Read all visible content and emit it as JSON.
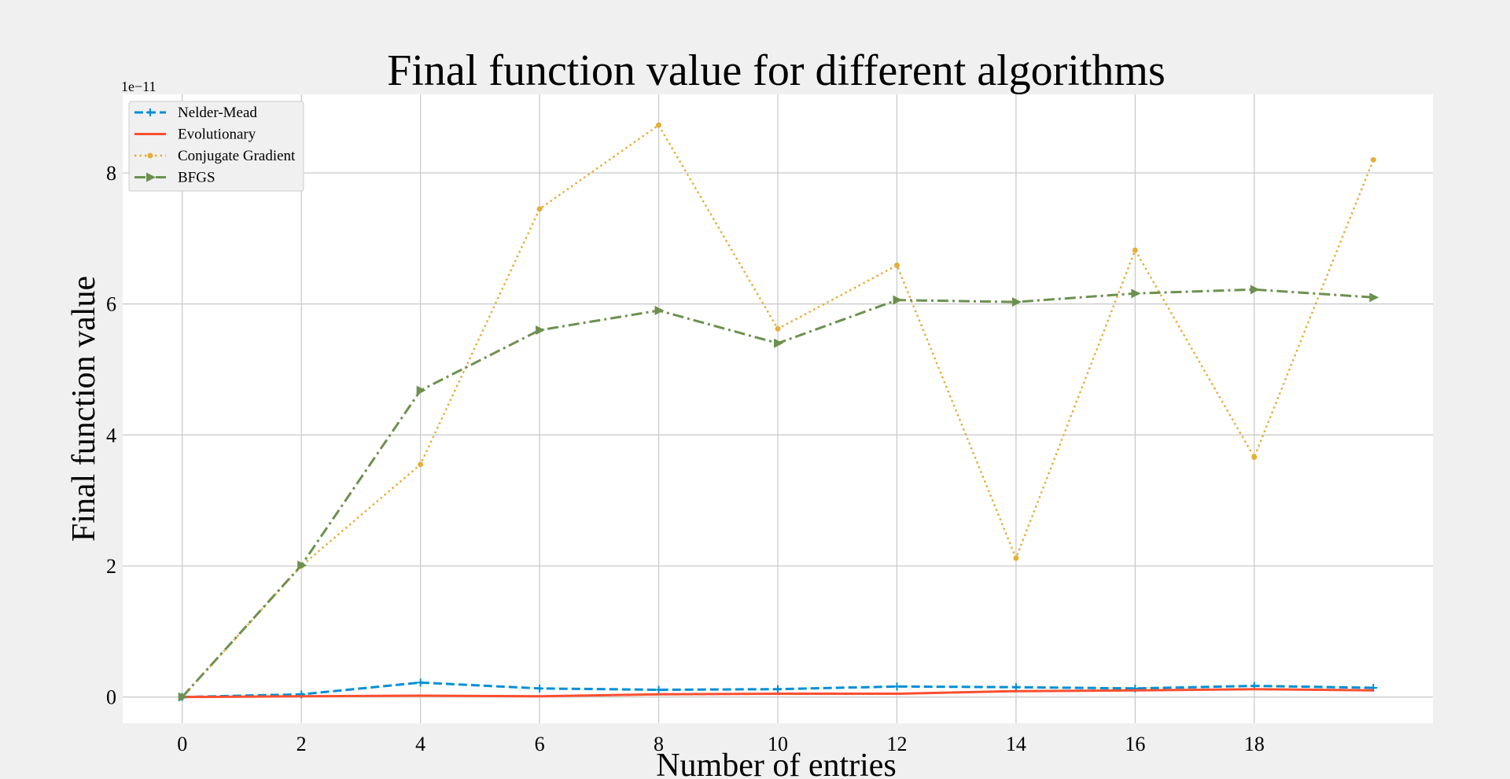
{
  "chart_data": {
    "type": "line",
    "title": "Final function value for different algorithms",
    "xlabel": "Number of entries",
    "ylabel": "Final function value",
    "y_offset_label": "1e−11",
    "xlim": [
      -1,
      21
    ],
    "ylim": [
      -0.4,
      9.2
    ],
    "x_ticks": [
      0,
      2,
      4,
      6,
      8,
      10,
      12,
      14,
      16,
      18
    ],
    "y_ticks": [
      0,
      2,
      4,
      6,
      8
    ],
    "grid": true,
    "legend_position": "top-left",
    "x": [
      0,
      2,
      4,
      6,
      8,
      10,
      12,
      14,
      16,
      18,
      20
    ],
    "series": [
      {
        "name": "Nelder-Mead",
        "color": "#008fd5",
        "style": "dashed",
        "marker": "plus",
        "values": [
          0.0,
          0.04,
          0.22,
          0.13,
          0.11,
          0.12,
          0.16,
          0.15,
          0.13,
          0.17,
          0.14
        ]
      },
      {
        "name": "Evolutionary",
        "color": "#fc4f30",
        "style": "solid",
        "marker": "none",
        "values": [
          0.0,
          0.01,
          0.02,
          0.01,
          0.04,
          0.05,
          0.05,
          0.09,
          0.1,
          0.12,
          0.1
        ]
      },
      {
        "name": "Conjugate Gradient",
        "color": "#e5ae38",
        "style": "dotted",
        "marker": "dot",
        "values": [
          0.0,
          2.0,
          3.55,
          7.45,
          8.73,
          5.62,
          6.59,
          2.12,
          6.82,
          3.66,
          8.2
        ]
      },
      {
        "name": "BFGS",
        "color": "#6d904f",
        "style": "dashdot",
        "marker": "triangle-right",
        "values": [
          0.0,
          2.01,
          4.68,
          5.6,
          5.9,
          5.4,
          6.06,
          6.03,
          6.16,
          6.22,
          6.1
        ]
      }
    ]
  }
}
